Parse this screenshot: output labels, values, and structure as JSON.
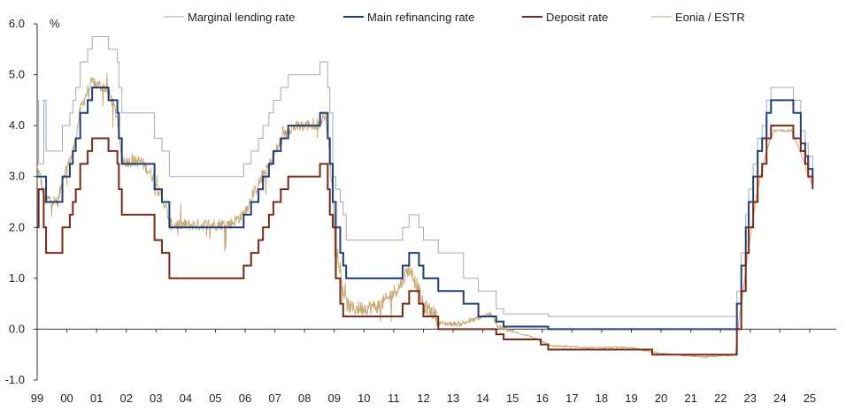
{
  "chart_data": {
    "type": "line",
    "ylabel": "%",
    "ylim": [
      -1.0,
      6.0
    ],
    "yticks": [
      "6.0",
      "5.0",
      "4.0",
      "3.0",
      "2.0",
      "1.0",
      "0.0",
      "-1.0"
    ],
    "yticks_values": [
      6,
      5,
      4,
      3,
      2,
      1,
      0,
      -1
    ],
    "xlim": [
      1999.0,
      2025.3
    ],
    "xticks": [
      "99",
      "00",
      "01",
      "02",
      "03",
      "04",
      "05",
      "06",
      "07",
      "08",
      "09",
      "10",
      "11",
      "12",
      "13",
      "14",
      "15",
      "16",
      "17",
      "18",
      "19",
      "20",
      "21",
      "22",
      "23",
      "24",
      "25"
    ],
    "legend_position": "top",
    "grid": false,
    "series": [
      {
        "name": "Marginal lending rate",
        "color": "#9aaab8",
        "step": true,
        "points": [
          [
            1999.0,
            4.5
          ],
          [
            1999.05,
            3.25
          ],
          [
            1999.22,
            4.5
          ],
          [
            1999.3,
            3.5
          ],
          [
            1999.85,
            4.0
          ],
          [
            2000.1,
            4.25
          ],
          [
            2000.2,
            4.5
          ],
          [
            2000.3,
            4.75
          ],
          [
            2000.45,
            5.25
          ],
          [
            2000.7,
            5.5
          ],
          [
            2000.85,
            5.75
          ],
          [
            2001.4,
            5.5
          ],
          [
            2001.7,
            5.25
          ],
          [
            2001.75,
            4.75
          ],
          [
            2001.85,
            4.25
          ],
          [
            2002.95,
            3.75
          ],
          [
            2003.2,
            3.5
          ],
          [
            2003.45,
            3.0
          ],
          [
            2005.95,
            3.25
          ],
          [
            2006.2,
            3.5
          ],
          [
            2006.45,
            3.75
          ],
          [
            2006.6,
            4.0
          ],
          [
            2006.8,
            4.25
          ],
          [
            2006.95,
            4.5
          ],
          [
            2007.2,
            4.75
          ],
          [
            2007.45,
            5.0
          ],
          [
            2008.52,
            5.25
          ],
          [
            2008.78,
            4.75
          ],
          [
            2008.85,
            4.25
          ],
          [
            2008.95,
            3.0
          ],
          [
            2009.05,
            2.75
          ],
          [
            2009.2,
            2.5
          ],
          [
            2009.3,
            2.25
          ],
          [
            2009.4,
            1.75
          ],
          [
            2011.3,
            2.0
          ],
          [
            2011.52,
            2.25
          ],
          [
            2011.85,
            2.0
          ],
          [
            2012.0,
            1.75
          ],
          [
            2012.5,
            1.5
          ],
          [
            2013.35,
            1.0
          ],
          [
            2013.85,
            0.75
          ],
          [
            2014.45,
            0.4
          ],
          [
            2014.7,
            0.3
          ],
          [
            2016.2,
            0.25
          ],
          [
            2022.55,
            0.75
          ],
          [
            2022.7,
            1.5
          ],
          [
            2022.85,
            2.25
          ],
          [
            2022.95,
            2.75
          ],
          [
            2023.1,
            3.25
          ],
          [
            2023.25,
            3.75
          ],
          [
            2023.4,
            4.0
          ],
          [
            2023.55,
            4.5
          ],
          [
            2023.7,
            4.75
          ],
          [
            2024.45,
            4.5
          ],
          [
            2024.7,
            3.9
          ],
          [
            2024.85,
            3.65
          ],
          [
            2024.95,
            3.4
          ],
          [
            2025.1,
            3.15
          ]
        ]
      },
      {
        "name": "Main refinancing rate",
        "color": "#1f3f7a",
        "step": true,
        "points": [
          [
            1999.0,
            3.0
          ],
          [
            1999.3,
            2.5
          ],
          [
            1999.85,
            3.0
          ],
          [
            2000.1,
            3.25
          ],
          [
            2000.2,
            3.5
          ],
          [
            2000.3,
            3.75
          ],
          [
            2000.45,
            4.25
          ],
          [
            2000.7,
            4.5
          ],
          [
            2000.85,
            4.75
          ],
          [
            2001.4,
            4.5
          ],
          [
            2001.7,
            4.25
          ],
          [
            2001.75,
            3.75
          ],
          [
            2001.85,
            3.25
          ],
          [
            2002.95,
            2.75
          ],
          [
            2003.2,
            2.5
          ],
          [
            2003.45,
            2.0
          ],
          [
            2005.95,
            2.25
          ],
          [
            2006.2,
            2.5
          ],
          [
            2006.45,
            2.75
          ],
          [
            2006.6,
            3.0
          ],
          [
            2006.8,
            3.25
          ],
          [
            2006.95,
            3.5
          ],
          [
            2007.2,
            3.75
          ],
          [
            2007.45,
            4.0
          ],
          [
            2008.52,
            4.25
          ],
          [
            2008.78,
            3.75
          ],
          [
            2008.85,
            3.25
          ],
          [
            2008.95,
            2.5
          ],
          [
            2009.05,
            2.0
          ],
          [
            2009.2,
            1.5
          ],
          [
            2009.3,
            1.25
          ],
          [
            2009.4,
            1.0
          ],
          [
            2011.3,
            1.25
          ],
          [
            2011.52,
            1.5
          ],
          [
            2011.85,
            1.25
          ],
          [
            2012.0,
            1.0
          ],
          [
            2012.5,
            0.75
          ],
          [
            2013.35,
            0.5
          ],
          [
            2013.85,
            0.25
          ],
          [
            2014.45,
            0.15
          ],
          [
            2014.7,
            0.05
          ],
          [
            2016.2,
            0.0
          ],
          [
            2022.55,
            0.5
          ],
          [
            2022.7,
            1.25
          ],
          [
            2022.85,
            2.0
          ],
          [
            2022.95,
            2.5
          ],
          [
            2023.1,
            3.0
          ],
          [
            2023.25,
            3.5
          ],
          [
            2023.4,
            3.75
          ],
          [
            2023.55,
            4.25
          ],
          [
            2023.7,
            4.5
          ],
          [
            2024.45,
            4.25
          ],
          [
            2024.7,
            3.65
          ],
          [
            2024.85,
            3.4
          ],
          [
            2024.95,
            3.15
          ],
          [
            2025.1,
            2.9
          ]
        ]
      },
      {
        "name": "Deposit rate",
        "color": "#7a2a18",
        "step": true,
        "points": [
          [
            1999.0,
            2.0
          ],
          [
            1999.05,
            2.75
          ],
          [
            1999.22,
            2.0
          ],
          [
            1999.3,
            1.5
          ],
          [
            1999.85,
            2.0
          ],
          [
            2000.1,
            2.25
          ],
          [
            2000.2,
            2.5
          ],
          [
            2000.3,
            2.75
          ],
          [
            2000.45,
            3.25
          ],
          [
            2000.7,
            3.5
          ],
          [
            2000.85,
            3.75
          ],
          [
            2001.4,
            3.5
          ],
          [
            2001.7,
            3.25
          ],
          [
            2001.75,
            2.75
          ],
          [
            2001.85,
            2.25
          ],
          [
            2002.95,
            1.75
          ],
          [
            2003.2,
            1.5
          ],
          [
            2003.45,
            1.0
          ],
          [
            2005.95,
            1.25
          ],
          [
            2006.2,
            1.5
          ],
          [
            2006.45,
            1.75
          ],
          [
            2006.6,
            2.0
          ],
          [
            2006.8,
            2.25
          ],
          [
            2006.95,
            2.5
          ],
          [
            2007.2,
            2.75
          ],
          [
            2007.45,
            3.0
          ],
          [
            2008.52,
            3.25
          ],
          [
            2008.78,
            2.75
          ],
          [
            2008.85,
            2.25
          ],
          [
            2008.95,
            2.0
          ],
          [
            2009.05,
            1.0
          ],
          [
            2009.2,
            0.5
          ],
          [
            2009.3,
            0.25
          ],
          [
            2011.3,
            0.5
          ],
          [
            2011.52,
            0.75
          ],
          [
            2011.85,
            0.5
          ],
          [
            2012.0,
            0.25
          ],
          [
            2012.5,
            0.0
          ],
          [
            2014.45,
            -0.1
          ],
          [
            2014.7,
            -0.2
          ],
          [
            2015.95,
            -0.3
          ],
          [
            2016.2,
            -0.4
          ],
          [
            2019.7,
            -0.5
          ],
          [
            2022.55,
            0.0
          ],
          [
            2022.7,
            0.75
          ],
          [
            2022.85,
            1.5
          ],
          [
            2022.95,
            2.0
          ],
          [
            2023.1,
            2.5
          ],
          [
            2023.25,
            3.0
          ],
          [
            2023.4,
            3.25
          ],
          [
            2023.55,
            3.75
          ],
          [
            2023.7,
            4.0
          ],
          [
            2024.45,
            3.75
          ],
          [
            2024.7,
            3.5
          ],
          [
            2024.85,
            3.25
          ],
          [
            2024.95,
            3.0
          ],
          [
            2025.1,
            2.75
          ]
        ]
      },
      {
        "name": "Eonia / ESTR",
        "color": "#c8aa78",
        "step": false,
        "noise": true,
        "points": [
          [
            1999.0,
            3.15
          ],
          [
            1999.1,
            3.0
          ],
          [
            1999.25,
            2.55
          ],
          [
            1999.45,
            2.55
          ],
          [
            1999.7,
            2.5
          ],
          [
            1999.9,
            3.05
          ],
          [
            2000.1,
            3.3
          ],
          [
            2000.25,
            3.6
          ],
          [
            2000.45,
            4.3
          ],
          [
            2000.7,
            4.7
          ],
          [
            2000.85,
            4.85
          ],
          [
            2001.0,
            4.8
          ],
          [
            2001.3,
            4.75
          ],
          [
            2001.55,
            4.45
          ],
          [
            2001.7,
            4.15
          ],
          [
            2001.8,
            3.55
          ],
          [
            2001.9,
            3.3
          ],
          [
            2002.5,
            3.3
          ],
          [
            2002.9,
            3.0
          ],
          [
            2003.1,
            2.7
          ],
          [
            2003.3,
            2.45
          ],
          [
            2003.5,
            2.05
          ],
          [
            2004.5,
            2.05
          ],
          [
            2005.5,
            2.07
          ],
          [
            2005.95,
            2.25
          ],
          [
            2006.2,
            2.55
          ],
          [
            2006.45,
            2.85
          ],
          [
            2006.7,
            3.1
          ],
          [
            2006.95,
            3.4
          ],
          [
            2007.2,
            3.7
          ],
          [
            2007.5,
            3.95
          ],
          [
            2008.0,
            4.0
          ],
          [
            2008.5,
            4.05
          ],
          [
            2008.7,
            4.25
          ],
          [
            2008.85,
            3.4
          ],
          [
            2008.95,
            2.6
          ],
          [
            2009.05,
            1.6
          ],
          [
            2009.2,
            1.1
          ],
          [
            2009.4,
            0.5
          ],
          [
            2009.6,
            0.4
          ],
          [
            2010.5,
            0.45
          ],
          [
            2010.8,
            0.6
          ],
          [
            2011.2,
            0.85
          ],
          [
            2011.5,
            1.2
          ],
          [
            2011.8,
            0.85
          ],
          [
            2012.0,
            0.45
          ],
          [
            2012.4,
            0.3
          ],
          [
            2012.5,
            0.12
          ],
          [
            2013.2,
            0.1
          ],
          [
            2013.8,
            0.2
          ],
          [
            2014.3,
            0.3
          ],
          [
            2014.5,
            0.05
          ],
          [
            2015.0,
            -0.05
          ],
          [
            2015.5,
            -0.12
          ],
          [
            2016.0,
            -0.24
          ],
          [
            2016.3,
            -0.33
          ],
          [
            2017.5,
            -0.36
          ],
          [
            2019.0,
            -0.36
          ],
          [
            2019.7,
            -0.45
          ],
          [
            2020.0,
            -0.48
          ],
          [
            2021.5,
            -0.55
          ],
          [
            2022.5,
            -0.5
          ],
          [
            2022.6,
            0.1
          ],
          [
            2022.8,
            0.9
          ],
          [
            2022.9,
            1.4
          ],
          [
            2023.05,
            2.0
          ],
          [
            2023.2,
            2.6
          ],
          [
            2023.35,
            3.0
          ],
          [
            2023.5,
            3.4
          ],
          [
            2023.65,
            3.7
          ],
          [
            2023.8,
            3.9
          ],
          [
            2024.4,
            3.9
          ],
          [
            2024.6,
            3.6
          ],
          [
            2024.8,
            3.3
          ],
          [
            2024.95,
            3.0
          ],
          [
            2025.1,
            2.85
          ]
        ]
      }
    ]
  }
}
